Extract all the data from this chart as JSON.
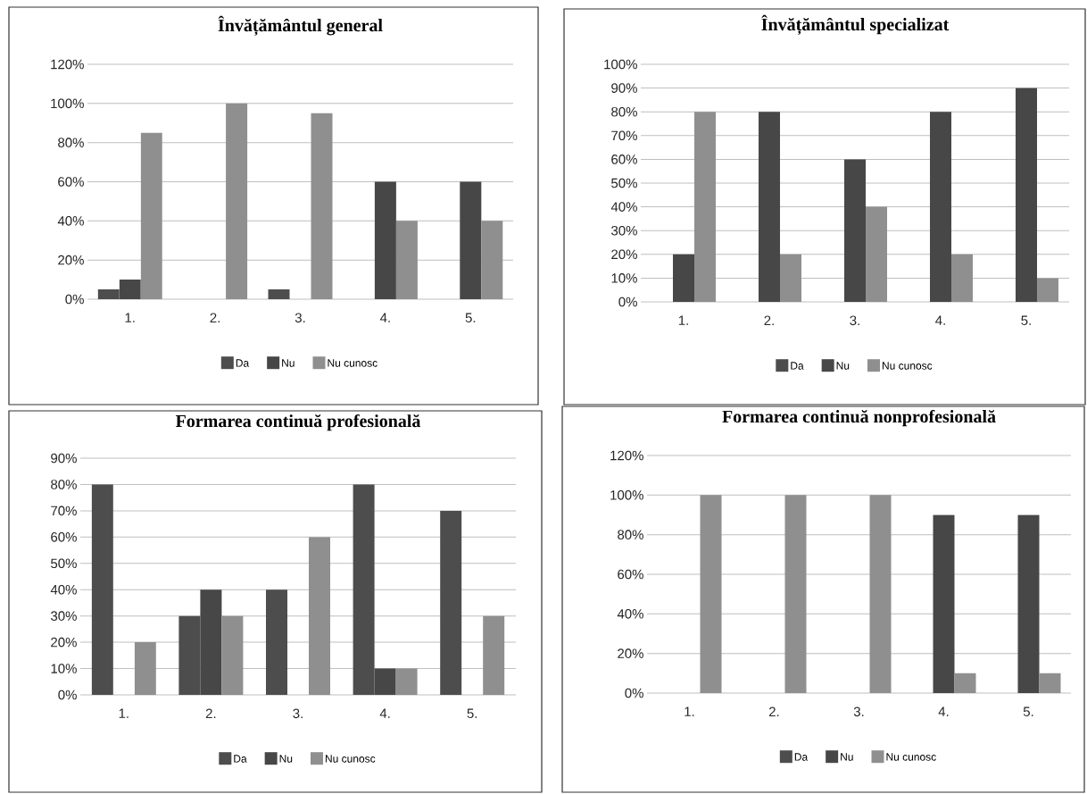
{
  "chart_data": [
    {
      "type": "bar",
      "title": "Învățământul general",
      "categories": [
        "1.",
        "2.",
        "3.",
        "4.",
        "5."
      ],
      "grid": "y",
      "legend": "bottom",
      "ylim": [
        0,
        120
      ],
      "yticks": [
        {
          "value": 0,
          "label": "0%"
        },
        {
          "value": 20,
          "label": "20%"
        },
        {
          "value": 40,
          "label": "40%"
        },
        {
          "value": 60,
          "label": "60%"
        },
        {
          "value": 80,
          "label": "80%"
        },
        {
          "value": 100,
          "label": "100%"
        },
        {
          "value": 120,
          "label": "120%"
        }
      ],
      "series": [
        {
          "name": "Da",
          "color": "#4d4d4d",
          "values": [
            5,
            0,
            5,
            0,
            0
          ]
        },
        {
          "name": "Nu",
          "color": "#474747",
          "values": [
            10,
            0,
            0,
            60,
            60
          ]
        },
        {
          "name": "Nu cunosc",
          "color": "#8f8f8f",
          "values": [
            85,
            100,
            95,
            40,
            40
          ]
        }
      ]
    },
    {
      "type": "bar",
      "title": "Învățământul specializat",
      "categories": [
        "1.",
        "2.",
        "3.",
        "4.",
        "5."
      ],
      "grid": "y",
      "legend": "bottom",
      "ylim": [
        0,
        100
      ],
      "yticks": [
        {
          "value": 0,
          "label": "0%"
        },
        {
          "value": 10,
          "label": "10%"
        },
        {
          "value": 20,
          "label": "20%"
        },
        {
          "value": 30,
          "label": "30%"
        },
        {
          "value": 40,
          "label": "40%"
        },
        {
          "value": 50,
          "label": "50%"
        },
        {
          "value": 60,
          "label": "60%"
        },
        {
          "value": 70,
          "label": "70%"
        },
        {
          "value": 80,
          "label": "80%"
        },
        {
          "value": 90,
          "label": "90%"
        },
        {
          "value": 100,
          "label": "100%"
        }
      ],
      "series": [
        {
          "name": "Da",
          "color": "#4d4d4d",
          "values": [
            0,
            0,
            0,
            0,
            0
          ]
        },
        {
          "name": "Nu",
          "color": "#474747",
          "values": [
            20,
            80,
            60,
            80,
            90
          ]
        },
        {
          "name": "Nu cunosc",
          "color": "#8f8f8f",
          "values": [
            80,
            20,
            40,
            20,
            10
          ]
        }
      ]
    },
    {
      "type": "bar",
      "title": "Formarea continuă profesională",
      "categories": [
        "1.",
        "2.",
        "3.",
        "4.",
        "5."
      ],
      "grid": "y",
      "legend": "bottom",
      "ylim": [
        0,
        90
      ],
      "yticks": [
        {
          "value": 0,
          "label": "0%"
        },
        {
          "value": 10,
          "label": "10%"
        },
        {
          "value": 20,
          "label": "20%"
        },
        {
          "value": 30,
          "label": "30%"
        },
        {
          "value": 40,
          "label": "40%"
        },
        {
          "value": 50,
          "label": "50%"
        },
        {
          "value": 60,
          "label": "60%"
        },
        {
          "value": 70,
          "label": "70%"
        },
        {
          "value": 80,
          "label": "80%"
        },
        {
          "value": 90,
          "label": "90%"
        }
      ],
      "series": [
        {
          "name": "Da",
          "color": "#4d4d4d",
          "values": [
            80,
            30,
            40,
            80,
            70
          ]
        },
        {
          "name": "Nu",
          "color": "#474747",
          "values": [
            0,
            40,
            0,
            10,
            0
          ]
        },
        {
          "name": "Nu cunosc",
          "color": "#8f8f8f",
          "values": [
            20,
            30,
            60,
            10,
            30
          ]
        }
      ]
    },
    {
      "type": "bar",
      "title": "Formarea continuă nonprofesională",
      "categories": [
        "1.",
        "2.",
        "3.",
        "4.",
        "5."
      ],
      "grid": "y",
      "legend": "bottom",
      "ylim": [
        0,
        120
      ],
      "yticks": [
        {
          "value": 0,
          "label": "0%"
        },
        {
          "value": 20,
          "label": "20%"
        },
        {
          "value": 40,
          "label": "40%"
        },
        {
          "value": 60,
          "label": "60%"
        },
        {
          "value": 80,
          "label": "80%"
        },
        {
          "value": 100,
          "label": "100%"
        },
        {
          "value": 120,
          "label": "120%"
        }
      ],
      "series": [
        {
          "name": "Da",
          "color": "#4d4d4d",
          "values": [
            0,
            0,
            0,
            0,
            0
          ]
        },
        {
          "name": "Nu",
          "color": "#474747",
          "values": [
            0,
            0,
            0,
            90,
            90
          ]
        },
        {
          "name": "Nu cunosc",
          "color": "#8f8f8f",
          "values": [
            100,
            100,
            100,
            10,
            10
          ]
        }
      ]
    }
  ]
}
